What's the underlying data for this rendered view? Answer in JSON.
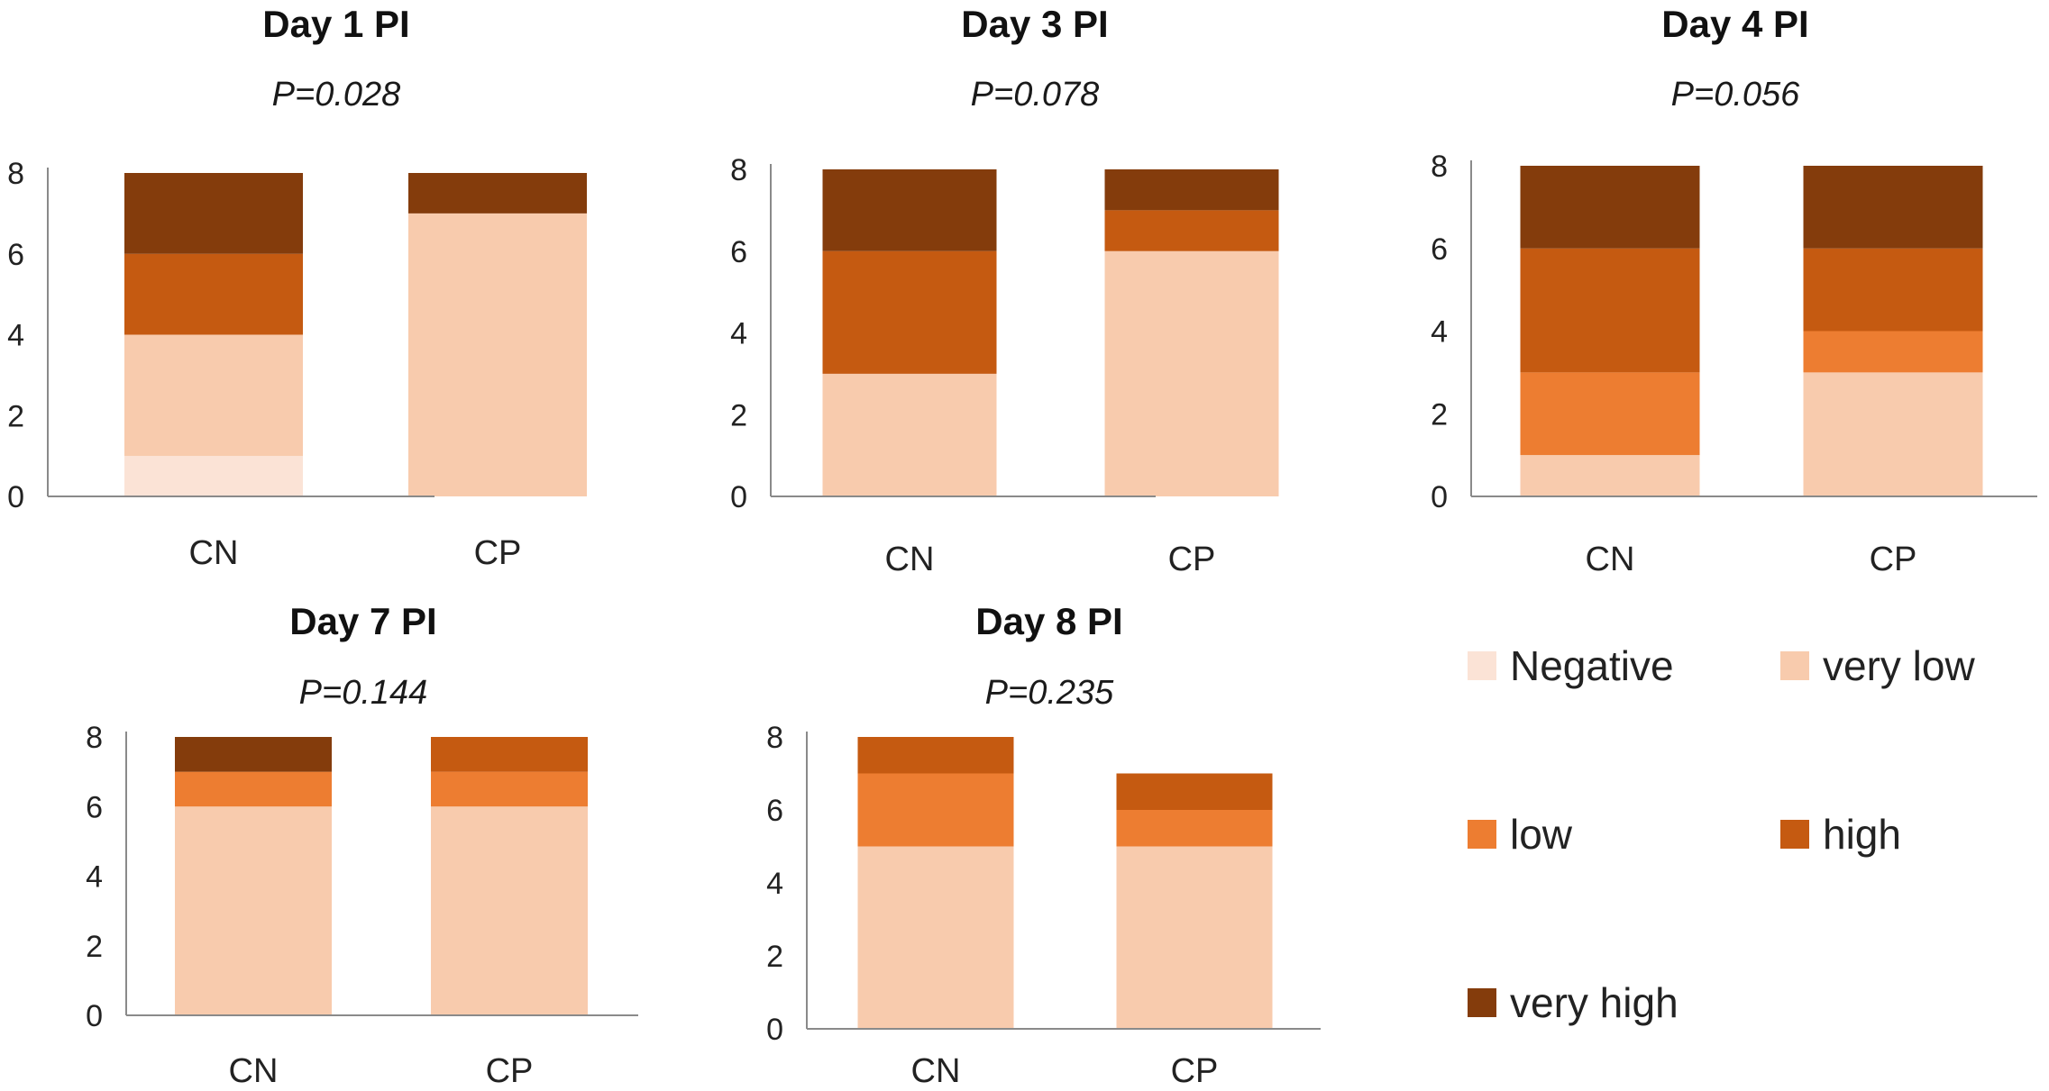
{
  "chart_data": [
    {
      "type": "bar",
      "stacked": true,
      "title": "Day 1 PI",
      "subtitle": "P=0.028",
      "categories": [
        "CN",
        "CP"
      ],
      "ylim": [
        0,
        8
      ],
      "yticks": [
        0,
        2,
        4,
        6,
        8
      ],
      "series": [
        {
          "name": "Negative",
          "values": [
            1,
            0
          ]
        },
        {
          "name": "very low",
          "values": [
            3,
            7
          ]
        },
        {
          "name": "low",
          "values": [
            0,
            0
          ]
        },
        {
          "name": "high",
          "values": [
            2,
            0
          ]
        },
        {
          "name": "very high",
          "values": [
            2,
            1
          ]
        }
      ]
    },
    {
      "type": "bar",
      "stacked": true,
      "title": "Day 3 PI",
      "subtitle": "P=0.078",
      "categories": [
        "CN",
        "CP"
      ],
      "ylim": [
        0,
        8
      ],
      "yticks": [
        0,
        2,
        4,
        6,
        8
      ],
      "series": [
        {
          "name": "Negative",
          "values": [
            0,
            0
          ]
        },
        {
          "name": "very low",
          "values": [
            3,
            6
          ]
        },
        {
          "name": "low",
          "values": [
            0,
            0
          ]
        },
        {
          "name": "high",
          "values": [
            3,
            1
          ]
        },
        {
          "name": "very high",
          "values": [
            2,
            1
          ]
        }
      ]
    },
    {
      "type": "bar",
      "stacked": true,
      "title": "Day 4 PI",
      "subtitle": "P=0.056",
      "categories": [
        "CN",
        "CP"
      ],
      "ylim": [
        0,
        8
      ],
      "yticks": [
        0,
        2,
        4,
        6,
        8
      ],
      "series": [
        {
          "name": "Negative",
          "values": [
            0,
            0
          ]
        },
        {
          "name": "very low",
          "values": [
            1,
            3
          ]
        },
        {
          "name": "low",
          "values": [
            2,
            1
          ]
        },
        {
          "name": "high",
          "values": [
            3,
            2
          ]
        },
        {
          "name": "very high",
          "values": [
            2,
            2
          ]
        }
      ]
    },
    {
      "type": "bar",
      "stacked": true,
      "title": "Day 7 PI",
      "subtitle": "P=0.144",
      "categories": [
        "CN",
        "CP"
      ],
      "ylim": [
        0,
        8
      ],
      "yticks": [
        0,
        2,
        4,
        6,
        8
      ],
      "series": [
        {
          "name": "Negative",
          "values": [
            0,
            0
          ]
        },
        {
          "name": "very low",
          "values": [
            6,
            6
          ]
        },
        {
          "name": "low",
          "values": [
            1,
            1
          ]
        },
        {
          "name": "high",
          "values": [
            0,
            1
          ]
        },
        {
          "name": "very high",
          "values": [
            1,
            0
          ]
        }
      ]
    },
    {
      "type": "bar",
      "stacked": true,
      "title": "Day 8 PI",
      "subtitle": "P=0.235",
      "categories": [
        "CN",
        "CP"
      ],
      "ylim": [
        0,
        8
      ],
      "yticks": [
        0,
        2,
        4,
        6,
        8
      ],
      "series": [
        {
          "name": "Negative",
          "values": [
            0,
            0
          ]
        },
        {
          "name": "very low",
          "values": [
            5,
            5
          ]
        },
        {
          "name": "low",
          "values": [
            2,
            1
          ]
        },
        {
          "name": "high",
          "values": [
            1,
            1
          ]
        },
        {
          "name": "very high",
          "values": [
            0,
            0
          ]
        }
      ]
    }
  ],
  "legend": [
    {
      "name": "Negative",
      "color": "#fbe3d6"
    },
    {
      "name": "very low",
      "color": "#f8cbad"
    },
    {
      "name": "low",
      "color": "#ed7d31"
    },
    {
      "name": "high",
      "color": "#c55a11"
    },
    {
      "name": "very high",
      "color": "#843c0c"
    }
  ]
}
